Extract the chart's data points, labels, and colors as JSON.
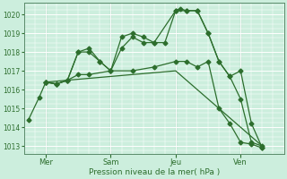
{
  "xlabel": "Pression niveau de la mer( hPa )",
  "bg_color": "#cceedd",
  "grid_color": "#ffffff",
  "line_color": "#2d6e2d",
  "ylim": [
    1012.6,
    1020.6
  ],
  "yticks": [
    1013,
    1014,
    1015,
    1016,
    1017,
    1018,
    1019,
    1020
  ],
  "xlim": [
    0,
    12
  ],
  "xtick_labels": [
    "Mer",
    "Sam",
    "Jeu",
    "Ven"
  ],
  "xtick_pos": [
    1,
    4,
    7,
    10
  ],
  "vlines_x": [
    1,
    4,
    7,
    10
  ],
  "series": [
    {
      "x": [
        1,
        1.5,
        2,
        2.5,
        3,
        3.5,
        4,
        4.5,
        5,
        5.5,
        6,
        6.5,
        7,
        7.2,
        7.5,
        8,
        8.5,
        9,
        9.5,
        10,
        10.5,
        11
      ],
      "y": [
        1016.4,
        1016.3,
        1016.5,
        1018.0,
        1018.0,
        1017.5,
        1017.0,
        1018.8,
        1019.0,
        1018.8,
        1018.5,
        1018.5,
        1020.2,
        1020.3,
        1020.2,
        1020.2,
        1019.0,
        1017.5,
        1016.7,
        1017.0,
        1014.2,
        1012.9
      ],
      "marker": "D",
      "ms": 2.5,
      "lw": 0.9
    },
    {
      "x": [
        1,
        1.5,
        2,
        2.5,
        3,
        3.5,
        4,
        4.5,
        5,
        5.5,
        6,
        7,
        7.5,
        8,
        8.5,
        9,
        9.5,
        10,
        10.5,
        11
      ],
      "y": [
        1016.4,
        1016.3,
        1016.5,
        1018.0,
        1018.2,
        1017.5,
        1017.0,
        1018.2,
        1018.8,
        1018.5,
        1018.5,
        1020.2,
        1020.2,
        1020.2,
        1019.0,
        1017.5,
        1016.7,
        1015.5,
        1013.2,
        1013.0
      ],
      "marker": "D",
      "ms": 2.5,
      "lw": 0.9
    },
    {
      "x": [
        1,
        1.5,
        2,
        2.5,
        3,
        4,
        5,
        6,
        7,
        7.5,
        8,
        8.5,
        9,
        9.5,
        10,
        10.5,
        11
      ],
      "y": [
        1016.4,
        1016.3,
        1016.5,
        1016.8,
        1016.8,
        1017.0,
        1017.0,
        1017.2,
        1017.5,
        1017.5,
        1017.2,
        1017.5,
        1015.0,
        1014.2,
        1013.2,
        1013.1,
        1012.9
      ],
      "marker": "D",
      "ms": 2.5,
      "lw": 0.9
    },
    {
      "x": [
        1,
        4,
        7,
        11
      ],
      "y": [
        1016.4,
        1016.7,
        1017.0,
        1013.0
      ],
      "marker": null,
      "ms": 0,
      "lw": 0.9
    }
  ],
  "start_series": [
    {
      "x": [
        0.2,
        0.7,
        1.0
      ],
      "y": [
        1014.4,
        1015.6,
        1016.4
      ],
      "marker": "D",
      "ms": 2.5,
      "lw": 0.9
    }
  ]
}
